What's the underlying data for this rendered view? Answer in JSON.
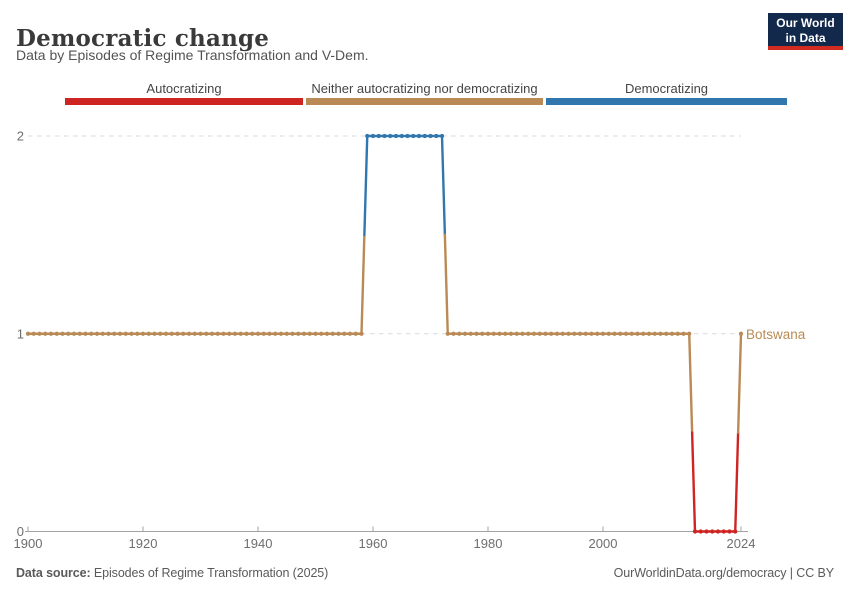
{
  "header": {
    "title": "Democratic change",
    "subtitle": "Data by Episodes of Regime Transformation and V-Dem."
  },
  "logo": {
    "line1": "Our World",
    "line2": "in Data",
    "bg_color": "#12294b",
    "accent_color": "#d42b20"
  },
  "legend": {
    "items": [
      {
        "label": "Autocratizing",
        "color": "#cf2522",
        "status": "autocratizing"
      },
      {
        "label": "Neither autocratizing nor democratizing",
        "color": "#b98a55",
        "status": "neither"
      },
      {
        "label": "Democratizing",
        "color": "#3177ad",
        "status": "democratizing"
      }
    ]
  },
  "entity_label": {
    "text": "Botswana",
    "color": "#b78b54"
  },
  "chart_data": {
    "type": "line",
    "title": "Democratic change",
    "xlabel": "",
    "ylabel": "",
    "x": {
      "min": 1900,
      "max": 2024,
      "ticks": [
        1900,
        1920,
        1940,
        1960,
        1980,
        2000,
        2024
      ]
    },
    "y": {
      "min": 0,
      "max": 2,
      "ticks": [
        0,
        1,
        2
      ]
    },
    "grid": "dashed horizontal gridlines at y=1 and y=2, solid x axis at y=0",
    "legend_position": "top color strip",
    "value_meaning": {
      "0": "autocratizing",
      "1": "neither autocratizing nor democratizing",
      "2": "democratizing"
    },
    "status_colors": {
      "autocratizing": "#cf2522",
      "neither": "#b98a55",
      "democratizing": "#3177ad"
    },
    "marker": "dot every year",
    "series": [
      {
        "name": "Botswana",
        "segments": [
          {
            "start_year": 1900,
            "end_year": 1958,
            "value": 1,
            "status": "neither"
          },
          {
            "start_year": 1959,
            "end_year": 1972,
            "value": 2,
            "status": "democratizing"
          },
          {
            "start_year": 1973,
            "end_year": 2015,
            "value": 1,
            "status": "neither"
          },
          {
            "start_year": 2016,
            "end_year": 2023,
            "value": 0,
            "status": "autocratizing"
          },
          {
            "start_year": 2024,
            "end_year": 2024,
            "value": 1,
            "status": "neither"
          }
        ]
      }
    ],
    "axis_color": "#a3a3a3",
    "grid_color": "#d8d8d8",
    "tick_label_color": "#6e6e6e"
  },
  "footer": {
    "source_label": "Data source:",
    "source_value": "Episodes of Regime Transformation (2025)",
    "credit": "OurWorldinData.org/democracy | CC BY"
  }
}
